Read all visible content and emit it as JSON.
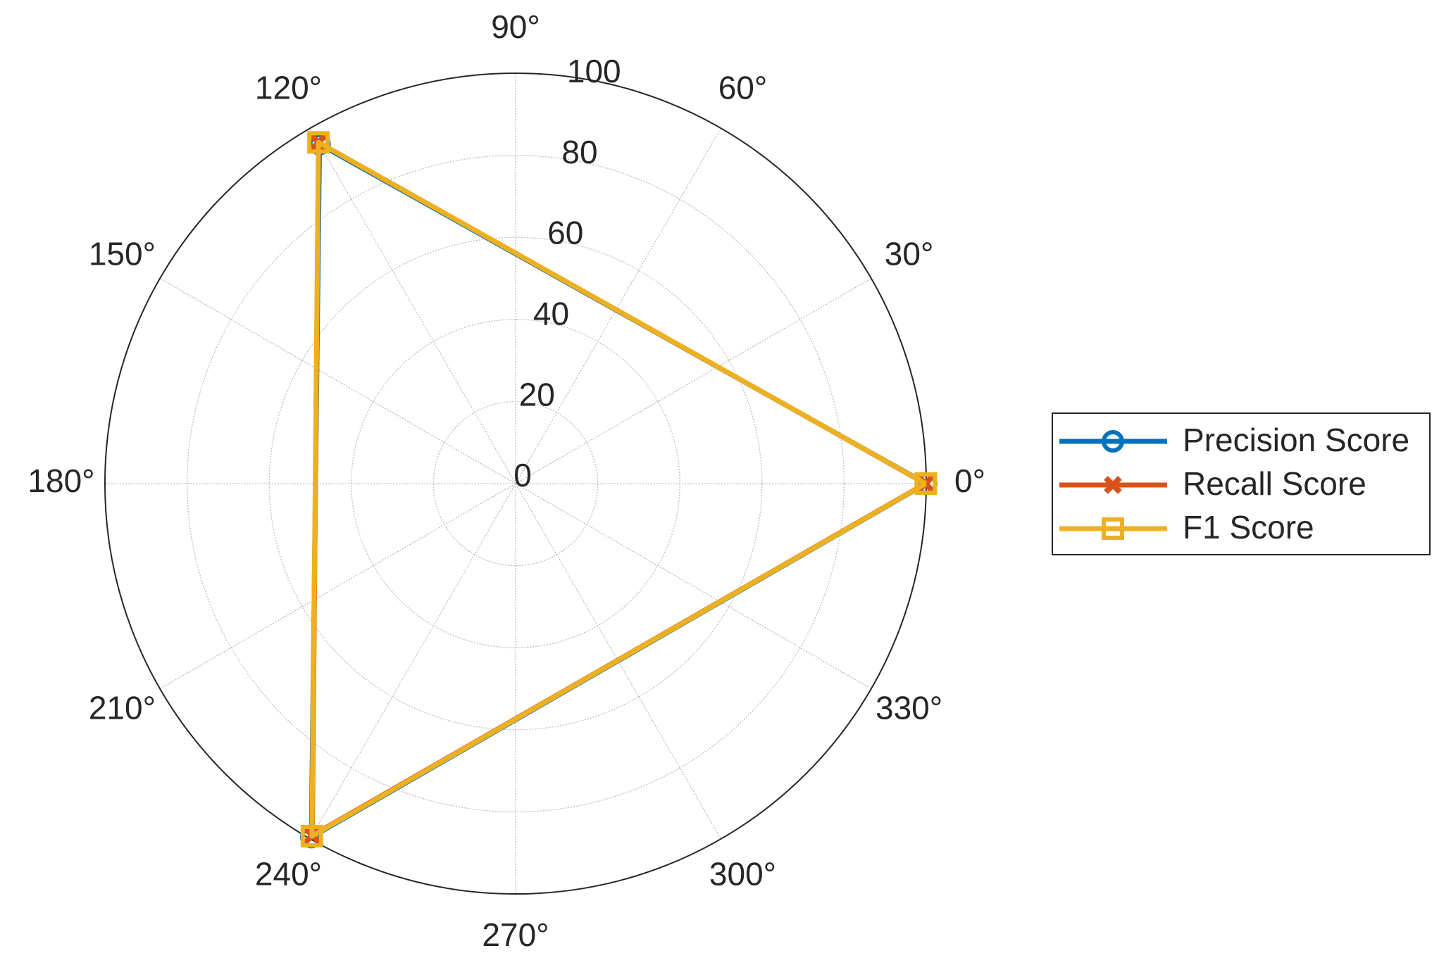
{
  "chart_data": {
    "type": "polar",
    "theta": [
      0,
      120,
      240,
      360
    ],
    "series": [
      {
        "name": "Precision Score",
        "color": "#0072BD",
        "marker": "circle",
        "values": [
          100,
          95.5,
          99.5,
          100
        ]
      },
      {
        "name": "Recall Score",
        "color": "#D95319",
        "marker": "x",
        "values": [
          99.8,
          96,
          99,
          99.8
        ]
      },
      {
        "name": "F1 Score",
        "color": "#EDB120",
        "marker": "square",
        "values": [
          99.9,
          96,
          99.2,
          99.9
        ]
      }
    ],
    "rlim": [
      0,
      100
    ],
    "rticks": [
      0,
      20,
      40,
      60,
      80,
      100
    ],
    "thetaticks": [
      {
        "value": 0,
        "label": "0°"
      },
      {
        "value": 30,
        "label": "30°"
      },
      {
        "value": 60,
        "label": "60°"
      },
      {
        "value": 90,
        "label": "90°"
      },
      {
        "value": 120,
        "label": "120°"
      },
      {
        "value": 150,
        "label": "150°"
      },
      {
        "value": 180,
        "label": "180°"
      },
      {
        "value": 210,
        "label": "210°"
      },
      {
        "value": 240,
        "label": "240°"
      },
      {
        "value": 270,
        "label": "270°"
      },
      {
        "value": 300,
        "label": "300°"
      },
      {
        "value": 330,
        "label": "330°"
      }
    ],
    "grid": true,
    "legend": "east"
  }
}
